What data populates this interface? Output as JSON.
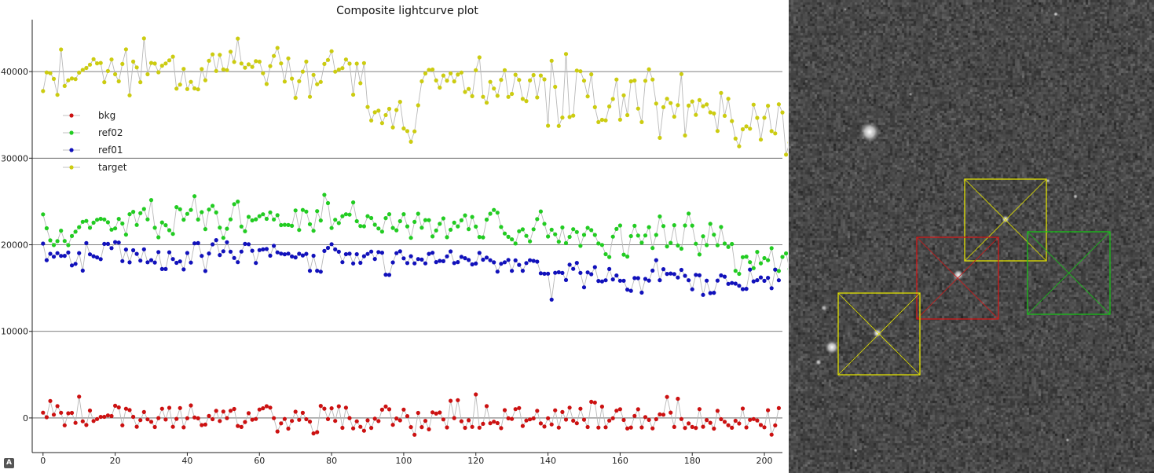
{
  "chart_data": {
    "type": "scatter",
    "title": "Composite lightcurve plot",
    "xlim": [
      -3,
      205
    ],
    "ylim": [
      -4000,
      46000
    ],
    "x_ticks": [
      0,
      20,
      40,
      60,
      80,
      100,
      120,
      140,
      160,
      180,
      200
    ],
    "y_ticks": [
      0,
      10000,
      20000,
      30000,
      40000
    ],
    "grid": "horizontal",
    "legend_position": "left",
    "series": [
      {
        "name": "bkg",
        "color": "#cc1111",
        "values": [
          607,
          79,
          1962,
          371,
          1373,
          601,
          -850,
          541,
          580,
          -568,
          2465,
          -389,
          -811,
          855,
          -350,
          -123,
          116,
          132,
          293,
          216,
          1411,
          1214,
          -850,
          1064,
          907,
          127,
          -1018,
          -254,
          681,
          -162,
          -443,
          -1055,
          -18,
          1062,
          -180,
          1171,
          -1026,
          -105,
          1141,
          -1085,
          -33,
          1443,
          55,
          -41,
          -824,
          -762,
          232,
          -140,
          820,
          -355,
          737,
          -23,
          828,
          1035,
          -928,
          -1046,
          -473,
          549,
          -211,
          -120,
          969,
          1117,
          1354,
          1194,
          -25,
          -1561,
          -625,
          -112,
          -1229,
          -343,
          718,
          -217,
          591,
          -140,
          -427,
          -1790,
          -1637,
          1393,
          1077,
          -131,
          1122,
          -340,
          1341,
          -1146,
          1177,
          -12,
          -1209,
          -387,
          -1027,
          -1475,
          -276,
          -1155,
          -90,
          -363,
          955,
          1315,
          1000,
          -793,
          -58,
          -276,
          960,
          214,
          -1062,
          -1938,
          582,
          -1056,
          -332,
          -1316,
          642,
          501,
          624,
          -169,
          -1092,
          1977,
          -12,
          2051,
          -377,
          -1144,
          -269,
          -1035,
          2715,
          -1123,
          -681,
          1361,
          -612,
          -432,
          -600,
          -1175,
          898,
          -44,
          -113,
          1014,
          1144,
          -926,
          -300,
          -162,
          -54,
          820,
          -635,
          -998,
          -36,
          -748,
          883,
          -1112,
          686,
          -193,
          1195,
          -319,
          -611,
          1059,
          -196,
          -1051,
          1859,
          1779,
          -1118,
          1306,
          -1074,
          -311,
          -33,
          838,
          1005,
          -237,
          -1212,
          -1102,
          236,
          1004,
          -1097,
          104,
          -222,
          -1203,
          -141,
          411,
          374,
          2424,
          617,
          -1040,
          2217,
          -122,
          -1156,
          -630,
          -1045,
          -1147,
          1019,
          -1016,
          -241,
          -562,
          -1230,
          820,
          -144,
          -451,
          -841,
          -1128,
          -323,
          -640,
          1079,
          -1096,
          -212,
          -129,
          -293,
          -815,
          -1080,
          894,
          -1928,
          -859,
          1133
        ]
      },
      {
        "name": "ref02",
        "color": "#22cc22",
        "values": [
          23510,
          21905,
          20506,
          19965,
          20417,
          21630,
          20434,
          19953,
          21007,
          21506,
          22035,
          22650,
          22753,
          21962,
          22554,
          22887,
          22993,
          22926,
          22598,
          21743,
          21892,
          22991,
          22453,
          21173,
          23534,
          23807,
          22287,
          23654,
          24132,
          22932,
          25168,
          21961,
          20863,
          22575,
          22263,
          21684,
          21256,
          24345,
          24106,
          22897,
          23571,
          24023,
          25608,
          22918,
          23768,
          21811,
          24071,
          24490,
          23735,
          21982,
          20797,
          21855,
          22934,
          24695,
          24985,
          22103,
          21565,
          23227,
          22812,
          22945,
          23301,
          23519,
          22995,
          23736,
          22920,
          23411,
          22266,
          22309,
          22280,
          22191,
          23964,
          21707,
          24023,
          23833,
          22383,
          21617,
          23883,
          22806,
          25768,
          24813,
          21936,
          22883,
          22506,
          23301,
          23523,
          23474,
          24897,
          22722,
          22161,
          22130,
          23303,
          23085,
          22313,
          21879,
          21519,
          23078,
          23528,
          21945,
          21669,
          22721,
          23533,
          22126,
          20796,
          22640,
          23585,
          21970,
          22849,
          22845,
          20960,
          21651,
          22416,
          23043,
          20877,
          21735,
          22549,
          22121,
          22824,
          23393,
          21809,
          23211,
          22102,
          20896,
          20853,
          22903,
          23587,
          24020,
          23707,
          22050,
          21302,
          20919,
          20632,
          20144,
          21567,
          21778,
          21025,
          20394,
          21787,
          22958,
          23852,
          22416,
          20952,
          21747,
          21213,
          20356,
          21997,
          20191,
          20911,
          21802,
          21471,
          19874,
          21145,
          21955,
          21692,
          21138,
          20148,
          19972,
          18916,
          18587,
          20936,
          21828,
          22228,
          18858,
          18640,
          21003,
          22193,
          21059,
          20240,
          21071,
          22036,
          19624,
          21138,
          23269,
          22161,
          19810,
          20218,
          22264,
          19908,
          19547,
          22225,
          23604,
          22212,
          20119,
          18879,
          20983,
          19960,
          22416,
          21165,
          19938,
          22052,
          20141,
          19749,
          20093,
          16991,
          16648,
          18566,
          18631,
          17985,
          17302,
          19173,
          17856,
          18461,
          18210,
          19600,
          17138,
          16973,
          18591,
          19001,
          17211,
          16961,
          17836,
          17294,
          16848
        ]
      },
      {
        "name": "ref01",
        "color": "#1111bb",
        "values": [
          20139,
          18227,
          18962,
          18624,
          19031,
          18712,
          18722,
          19102,
          17617,
          17797,
          19041,
          17013,
          20195,
          18894,
          18681,
          18544,
          18339,
          20106,
          20102,
          19615,
          20311,
          20254,
          18114,
          19444,
          17968,
          19371,
          18946,
          18168,
          19475,
          17975,
          18226,
          17951,
          19158,
          17200,
          17197,
          19128,
          18347,
          17911,
          18076,
          17151,
          19047,
          17944,
          20164,
          20188,
          18716,
          16971,
          18999,
          20045,
          20538,
          18809,
          19251,
          20293,
          19201,
          18478,
          17987,
          19214,
          20106,
          20069,
          19312,
          17901,
          19383,
          19462,
          19513,
          18744,
          19878,
          19124,
          18972,
          18907,
          18976,
          18649,
          18542,
          18962,
          18769,
          18947,
          17000,
          18732,
          16994,
          16890,
          19284,
          19639,
          20064,
          19463,
          19191,
          17985,
          18917,
          18964,
          17840,
          18910,
          17919,
          18674,
          18944,
          19216,
          18358,
          19161,
          19086,
          16548,
          16518,
          17964,
          19029,
          19243,
          18434,
          17890,
          18674,
          17850,
          18347,
          18287,
          17848,
          18951,
          19074,
          17993,
          18145,
          18101,
          18663,
          19227,
          17891,
          17994,
          18601,
          18451,
          18245,
          17731,
          17836,
          19056,
          18279,
          18521,
          18212,
          17968,
          16899,
          17803,
          17980,
          18254,
          16993,
          18195,
          17683,
          16996,
          17889,
          18215,
          18143,
          18054,
          16712,
          16650,
          16661,
          13670,
          16763,
          16826,
          16746,
          15925,
          17700,
          17220,
          17910,
          16757,
          15081,
          16809,
          16599,
          17418,
          15816,
          15766,
          15902,
          17195,
          15998,
          16451,
          15848,
          15849,
          14818,
          14686,
          16157,
          16146,
          14475,
          16054,
          15861,
          17012,
          18226,
          15911,
          17181,
          16637,
          16684,
          16617,
          16219,
          17102,
          16417,
          15896,
          14855,
          16526,
          16473,
          14214,
          15855,
          14418,
          14459,
          15865,
          16459,
          16321,
          15485,
          15581,
          15510,
          15263,
          14875,
          14909,
          17132,
          15769,
          15905,
          16223,
          15838,
          16184,
          14985,
          17124,
          15898
        ]
      },
      {
        "name": "target",
        "color": "#cccc11",
        "values": [
          37752,
          39901,
          39807,
          39155,
          37313,
          42552,
          38341,
          38998,
          39201,
          39134,
          39888,
          40188,
          40420,
          40799,
          41435,
          40958,
          41000,
          38774,
          40061,
          41396,
          39691,
          38874,
          40882,
          42574,
          37263,
          41153,
          40479,
          38778,
          43833,
          39692,
          41002,
          40925,
          39918,
          40680,
          40940,
          41301,
          41726,
          38032,
          38494,
          40312,
          37990,
          38810,
          38057,
          37954,
          40289,
          39000,
          41253,
          41993,
          40078,
          41939,
          40254,
          40165,
          42301,
          41121,
          43809,
          40935,
          40447,
          40840,
          40542,
          41209,
          41145,
          39814,
          38568,
          40637,
          41808,
          42734,
          40945,
          38850,
          41530,
          39188,
          36975,
          38882,
          40004,
          41152,
          37087,
          39624,
          38542,
          38800,
          40882,
          41349,
          42356,
          39990,
          40229,
          40400,
          41399,
          40917,
          37331,
          40915,
          38658,
          40983,
          35914,
          34357,
          35302,
          35481,
          34052,
          34974,
          35701,
          33563,
          35562,
          36510,
          33436,
          33137,
          31899,
          33092,
          36108,
          38877,
          39784,
          40195,
          40238,
          38977,
          38155,
          39547,
          38960,
          39796,
          38869,
          39661,
          39890,
          37649,
          38000,
          37165,
          40157,
          41648,
          37085,
          36405,
          38816,
          38041,
          37203,
          39046,
          40155,
          37079,
          37426,
          39637,
          39044,
          36844,
          36599,
          38976,
          39603,
          37014,
          39544,
          39102,
          33748,
          41254,
          38237,
          33719,
          34689,
          42030,
          34755,
          34923,
          40123,
          40040,
          38947,
          37138,
          39683,
          35888,
          34167,
          34431,
          34366,
          35972,
          36831,
          39084,
          34451,
          37263,
          34973,
          38879,
          38963,
          35730,
          34171,
          38937,
          40261,
          39086,
          36311,
          32351,
          35894,
          36863,
          36359,
          34790,
          36131,
          39712,
          32628,
          36075,
          36555,
          35000,
          36711,
          36003,
          36213,
          35296,
          35169,
          33144,
          37531,
          34897,
          36866,
          34283,
          32257,
          31374,
          33341,
          33667,
          33404,
          36181,
          34657,
          32147,
          34663,
          36054,
          33127,
          32858,
          36228,
          35282,
          30411,
          31799,
          36211,
          34733
        ]
      }
    ]
  },
  "overlays": {
    "boxes": [
      {
        "label": "target",
        "color": "#e0e000"
      },
      {
        "label": "bkg",
        "color": "#d01818"
      },
      {
        "label": "ref01",
        "color": "#e0e000"
      },
      {
        "label": "ref02",
        "color": "#18c018"
      }
    ]
  },
  "auto_button": {
    "label": "A"
  }
}
